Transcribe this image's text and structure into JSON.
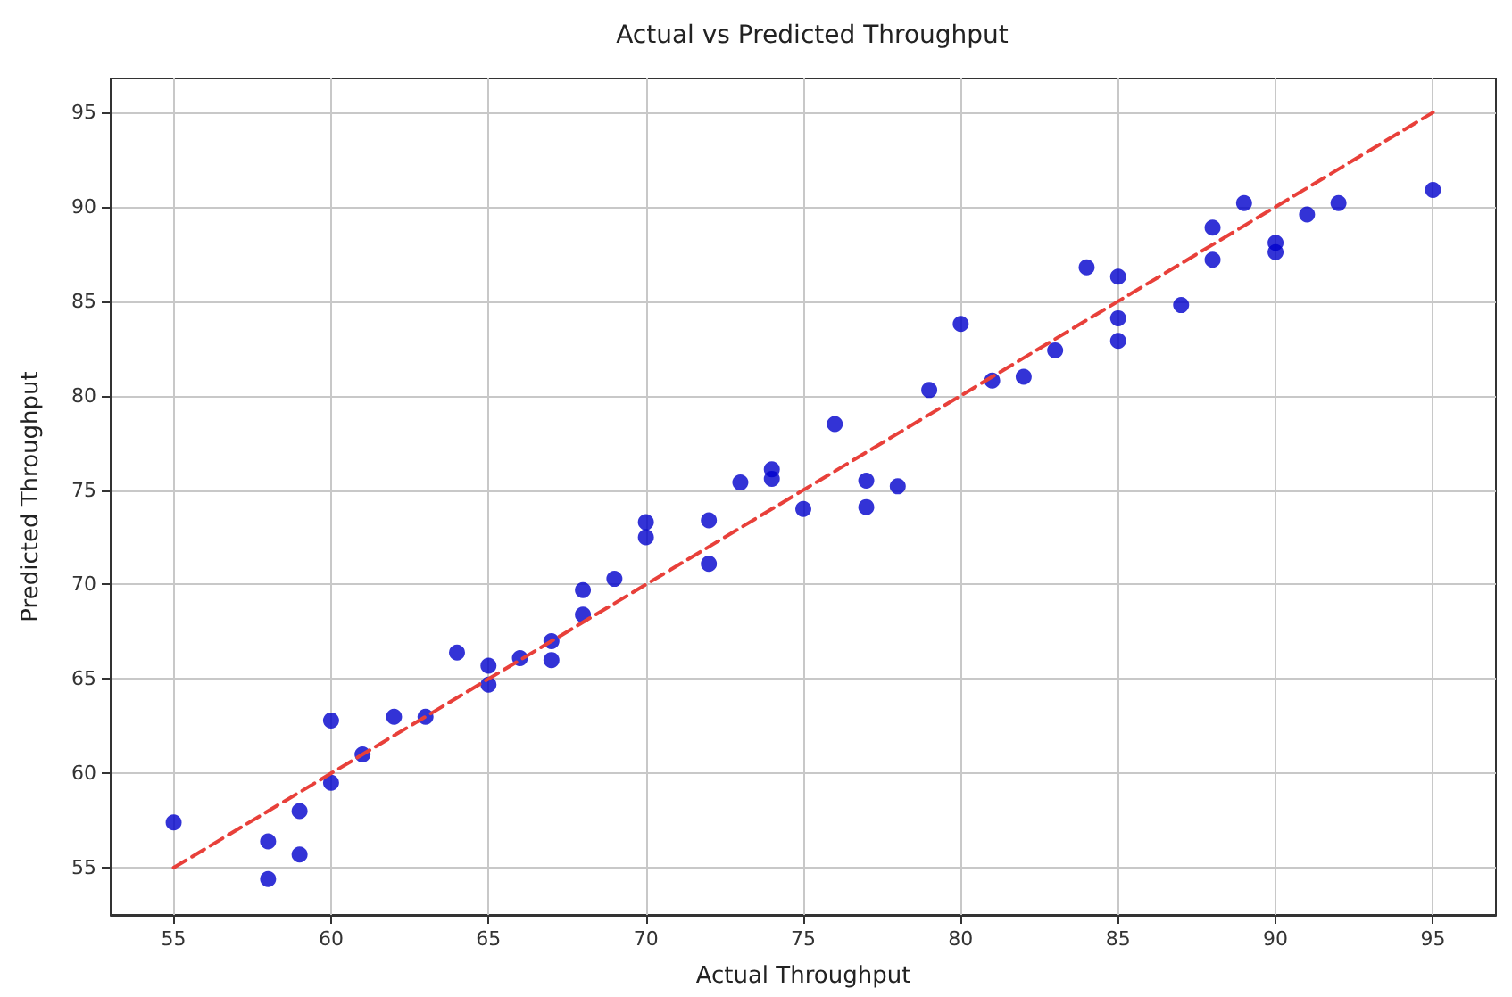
{
  "chart_data": {
    "type": "scatter",
    "title": "Actual vs Predicted Throughput",
    "xlabel": "Actual Throughput",
    "ylabel": "Predicted Throughput",
    "xlim": [
      53,
      97
    ],
    "xticks": [
      55,
      60,
      65,
      70,
      75,
      80,
      85,
      90,
      95
    ],
    "ylim": [
      52.5,
      96.8
    ],
    "yticks": [
      55,
      60,
      65,
      70,
      75,
      80,
      85,
      90,
      95
    ],
    "grid": true,
    "series": [
      {
        "color": "#0000cc",
        "marker": "circle",
        "x": [
          55,
          58,
          58,
          59,
          59,
          60,
          60,
          61,
          62,
          63,
          64,
          65,
          65,
          66,
          67,
          67,
          68,
          68,
          69,
          70,
          70,
          72,
          72,
          73,
          74,
          74,
          75,
          76,
          77,
          77,
          78,
          79,
          80,
          81,
          82,
          83,
          84,
          85,
          85,
          85,
          87,
          88,
          88,
          89,
          90,
          90,
          91,
          92,
          95
        ],
        "values": [
          57.4,
          56.4,
          54.4,
          58.0,
          55.7,
          62.8,
          59.5,
          61.0,
          63.0,
          63.0,
          66.4,
          65.7,
          64.7,
          66.1,
          67.0,
          66.0,
          69.7,
          68.4,
          70.3,
          73.3,
          72.5,
          73.4,
          71.1,
          75.4,
          75.6,
          76.1,
          74.0,
          78.5,
          75.5,
          74.1,
          75.2,
          80.3,
          83.8,
          80.8,
          81.0,
          82.4,
          86.8,
          86.3,
          84.1,
          82.9,
          84.8,
          88.9,
          87.2,
          90.2,
          88.1,
          87.6,
          89.6,
          90.2,
          90.9
        ]
      },
      {
        "type": "line",
        "color": "#e8403a",
        "marker": "none",
        "line_style": "dashed",
        "x": [
          55,
          95
        ],
        "values": [
          55,
          95
        ]
      }
    ]
  }
}
